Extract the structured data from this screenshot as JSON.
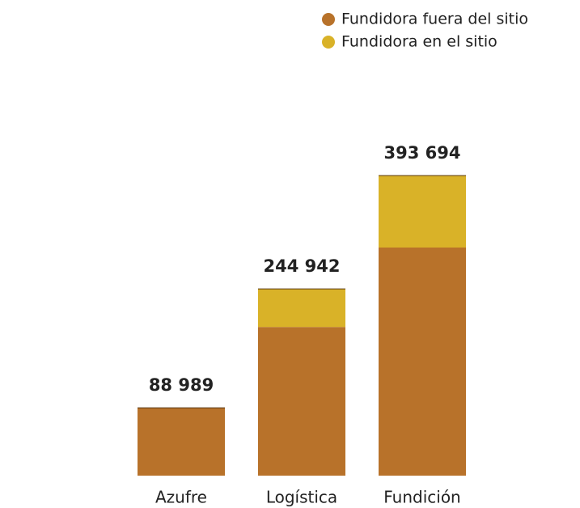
{
  "chart_data": {
    "type": "stacked-bar",
    "categories": [
      "Azufre",
      "Logística",
      "Fundición"
    ],
    "series": [
      {
        "name": "Fundidora fuera del sitio",
        "color": "#b8722a",
        "values": [
          88989,
          195000,
          299200
        ]
      },
      {
        "name": "Fundidora en el sitio",
        "color": "#d9b228",
        "values": [
          0,
          49942,
          94494
        ]
      }
    ],
    "totals": [
      88989,
      244942,
      393694
    ],
    "total_labels": [
      "88 989",
      "244 942",
      "393 694"
    ],
    "ylim": [
      0,
      400000
    ],
    "legend": "top-right"
  }
}
